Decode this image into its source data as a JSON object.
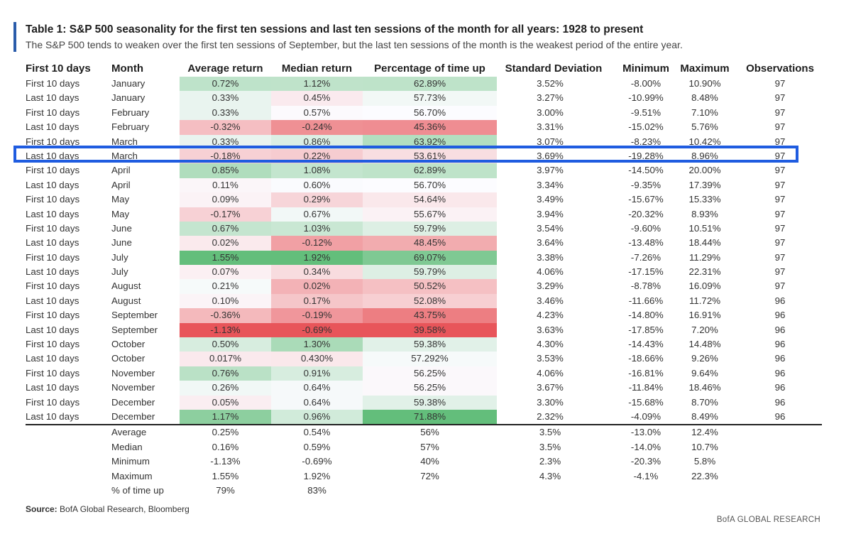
{
  "header": {
    "title": "Table 1: S&P 500 seasonality for the first ten sessions and last ten sessions of the month for all years: 1928 to present",
    "subtitle": "The S&P 500 tends to weaken over the first ten sessions of September, but the last ten sessions of the month is the weakest period of the entire year."
  },
  "columns": [
    "First 10 days",
    "Month",
    "Average return",
    "Median return",
    "Percentage of time up",
    "Standard Deviation",
    "Minimum",
    "Maximum",
    "Observations"
  ],
  "rows": [
    {
      "period": "First 10 days",
      "month": "January",
      "avg": "0.72%",
      "med": "1.12%",
      "pct": "62.89%",
      "std": "3.52%",
      "min": "-8.00%",
      "max": "10.90%",
      "obs": "97"
    },
    {
      "period": "Last 10 days",
      "month": "January",
      "avg": "0.33%",
      "med": "0.45%",
      "pct": "57.73%",
      "std": "3.27%",
      "min": "-10.99%",
      "max": "8.48%",
      "obs": "97"
    },
    {
      "period": "First 10 days",
      "month": "February",
      "avg": "0.33%",
      "med": "0.57%",
      "pct": "56.70%",
      "std": "3.00%",
      "min": "-9.51%",
      "max": "7.10%",
      "obs": "97"
    },
    {
      "period": "Last 10 days",
      "month": "February",
      "avg": "-0.32%",
      "med": "-0.24%",
      "pct": "45.36%",
      "std": "3.31%",
      "min": "-15.02%",
      "max": "5.76%",
      "obs": "97"
    },
    {
      "period": "First 10 days",
      "month": "March",
      "avg": "0.33%",
      "med": "0.86%",
      "pct": "63.92%",
      "std": "3.07%",
      "min": "-8.23%",
      "max": "10.42%",
      "obs": "97"
    },
    {
      "period": "Last 10 days",
      "month": "March",
      "avg": "-0.18%",
      "med": "0.22%",
      "pct": "53.61%",
      "std": "3.69%",
      "min": "-19.28%",
      "max": "8.96%",
      "obs": "97"
    },
    {
      "period": "First 10 days",
      "month": "April",
      "avg": "0.85%",
      "med": "1.08%",
      "pct": "62.89%",
      "std": "3.97%",
      "min": "-14.50%",
      "max": "20.00%",
      "obs": "97"
    },
    {
      "period": "Last 10 days",
      "month": "April",
      "avg": "0.11%",
      "med": "0.60%",
      "pct": "56.70%",
      "std": "3.34%",
      "min": "-9.35%",
      "max": "17.39%",
      "obs": "97"
    },
    {
      "period": "First 10 days",
      "month": "May",
      "avg": "0.09%",
      "med": "0.29%",
      "pct": "54.64%",
      "std": "3.49%",
      "min": "-15.67%",
      "max": "15.33%",
      "obs": "97"
    },
    {
      "period": "Last 10 days",
      "month": "May",
      "avg": "-0.17%",
      "med": "0.67%",
      "pct": "55.67%",
      "std": "3.94%",
      "min": "-20.32%",
      "max": "8.93%",
      "obs": "97"
    },
    {
      "period": "First 10 days",
      "month": "June",
      "avg": "0.67%",
      "med": "1.03%",
      "pct": "59.79%",
      "std": "3.54%",
      "min": "-9.60%",
      "max": "10.51%",
      "obs": "97"
    },
    {
      "period": "Last 10 days",
      "month": "June",
      "avg": "0.02%",
      "med": "-0.12%",
      "pct": "48.45%",
      "std": "3.64%",
      "min": "-13.48%",
      "max": "18.44%",
      "obs": "97"
    },
    {
      "period": "First 10 days",
      "month": "July",
      "avg": "1.55%",
      "med": "1.92%",
      "pct": "69.07%",
      "std": "3.38%",
      "min": "-7.26%",
      "max": "11.29%",
      "obs": "97"
    },
    {
      "period": "Last 10 days",
      "month": "July",
      "avg": "0.07%",
      "med": "0.34%",
      "pct": "59.79%",
      "std": "4.06%",
      "min": "-17.15%",
      "max": "22.31%",
      "obs": "97"
    },
    {
      "period": "First 10 days",
      "month": "August",
      "avg": "0.21%",
      "med": "0.02%",
      "pct": "50.52%",
      "std": "3.29%",
      "min": "-8.78%",
      "max": "16.09%",
      "obs": "97"
    },
    {
      "period": "Last 10 days",
      "month": "August",
      "avg": "0.10%",
      "med": "0.17%",
      "pct": "52.08%",
      "std": "3.46%",
      "min": "-11.66%",
      "max": "11.72%",
      "obs": "96"
    },
    {
      "period": "First 10 days",
      "month": "September",
      "avg": "-0.36%",
      "med": "-0.19%",
      "pct": "43.75%",
      "std": "4.23%",
      "min": "-14.80%",
      "max": "16.91%",
      "obs": "96"
    },
    {
      "period": "Last 10 days",
      "month": "September",
      "avg": "-1.13%",
      "med": "-0.69%",
      "pct": "39.58%",
      "std": "3.63%",
      "min": "-17.85%",
      "max": "7.20%",
      "obs": "96"
    },
    {
      "period": "First 10 days",
      "month": "October",
      "avg": "0.50%",
      "med": "1.30%",
      "pct": "59.38%",
      "std": "4.30%",
      "min": "-14.43%",
      "max": "14.48%",
      "obs": "96"
    },
    {
      "period": "Last 10 days",
      "month": "October",
      "avg": "0.017%",
      "med": "0.430%",
      "pct": "57.292%",
      "std": "3.53%",
      "min": "-18.66%",
      "max": "9.26%",
      "obs": "96"
    },
    {
      "period": "First 10 days",
      "month": "November",
      "avg": "0.76%",
      "med": "0.91%",
      "pct": "56.25%",
      "std": "4.06%",
      "min": "-16.81%",
      "max": "9.64%",
      "obs": "96"
    },
    {
      "period": "Last 10 days",
      "month": "November",
      "avg": "0.26%",
      "med": "0.64%",
      "pct": "56.25%",
      "std": "3.67%",
      "min": "-11.84%",
      "max": "18.46%",
      "obs": "96"
    },
    {
      "period": "First 10 days",
      "month": "December",
      "avg": "0.05%",
      "med": "0.64%",
      "pct": "59.38%",
      "std": "3.30%",
      "min": "-15.68%",
      "max": "8.70%",
      "obs": "96"
    },
    {
      "period": "Last 10 days",
      "month": "December",
      "avg": "1.17%",
      "med": "0.96%",
      "pct": "71.88%",
      "std": "2.32%",
      "min": "-4.09%",
      "max": "8.49%",
      "obs": "96"
    }
  ],
  "summary": [
    {
      "label": "Average",
      "avg": "0.25%",
      "med": "0.54%",
      "pct": "56%",
      "std": "3.5%",
      "min": "-13.0%",
      "max": "12.4%"
    },
    {
      "label": "Median",
      "avg": "0.16%",
      "med": "0.59%",
      "pct": "57%",
      "std": "3.5%",
      "min": "-14.0%",
      "max": "10.7%"
    },
    {
      "label": "Minimum",
      "avg": "-1.13%",
      "med": "-0.69%",
      "pct": "40%",
      "std": "2.3%",
      "min": "-20.3%",
      "max": "5.8%"
    },
    {
      "label": "Maximum",
      "avg": "1.55%",
      "med": "1.92%",
      "pct": "72%",
      "std": "4.3%",
      "min": "-4.1%",
      "max": "22.3%"
    },
    {
      "label": "% of time up",
      "avg": "79%",
      "med": "83%",
      "pct": "",
      "std": "",
      "min": "",
      "max": ""
    }
  ],
  "highlighted_row": 5,
  "colors": {
    "positive": "#63be7b",
    "negative": "#e8555a",
    "neutral": "#fcfcff",
    "highlight_border": "#1f5ce0",
    "accent_bar": "#2a5caa"
  },
  "footer": {
    "source_label": "Source:",
    "source_text": " BofA Global Research, Bloomberg",
    "brand": "BofA GLOBAL RESEARCH"
  }
}
